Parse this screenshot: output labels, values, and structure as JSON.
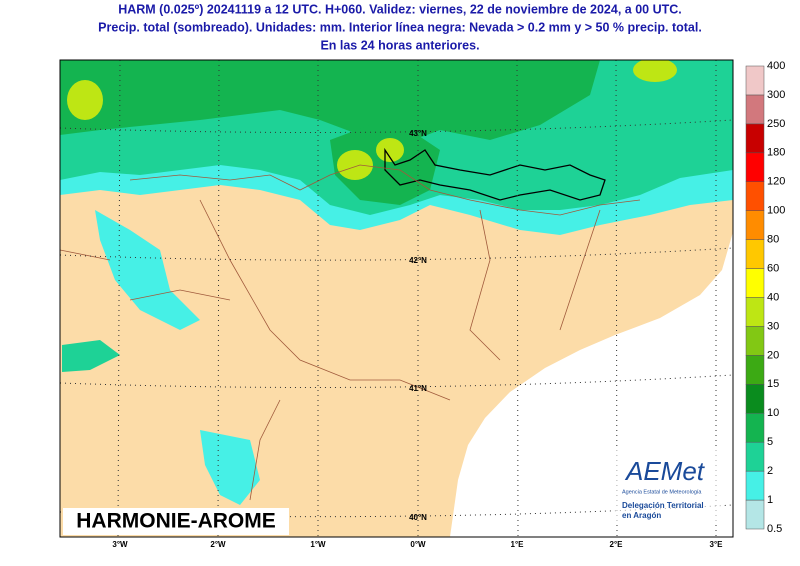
{
  "header": {
    "lines": [
      "HARM (0.025º) 20241119 a 12 UTC. H+060. Validez: viernes, 22 de noviembre de 2024, a 00 UTC.",
      "Precip. total (sombreado). Unidades: mm. Interior línea negra: Nevada > 0.2 mm y > 50 % precip. total.",
      "En las 24 horas anteriores."
    ]
  },
  "map": {
    "lat_labels": [
      "43°N",
      "42°N",
      "41°N",
      "40°N"
    ],
    "lon_labels": [
      "3°W",
      "2°W",
      "1°W",
      "0°W",
      "1°E",
      "2°E",
      "3°E"
    ],
    "watermark": "HARMONIE-AROME"
  },
  "colorbar": {
    "levels": [
      0.5,
      1,
      2,
      5,
      10,
      15,
      20,
      30,
      40,
      60,
      80,
      100,
      120,
      180,
      250,
      300,
      400
    ],
    "colors": [
      "#b4e6e6",
      "#46f0e6",
      "#1ed296",
      "#14b450",
      "#0a8c1e",
      "#3caa14",
      "#82c814",
      "#bee614",
      "#ffff00",
      "#ffc800",
      "#ff8c00",
      "#ff5000",
      "#ff0000",
      "#c80000",
      "#d2787d",
      "#f0c8c8"
    ]
  },
  "logo": {
    "name": "AEMet",
    "agency": "Agencia Estatal de Meteorología",
    "office_1": "Delegación Territorial",
    "office_2": "en Aragón"
  }
}
